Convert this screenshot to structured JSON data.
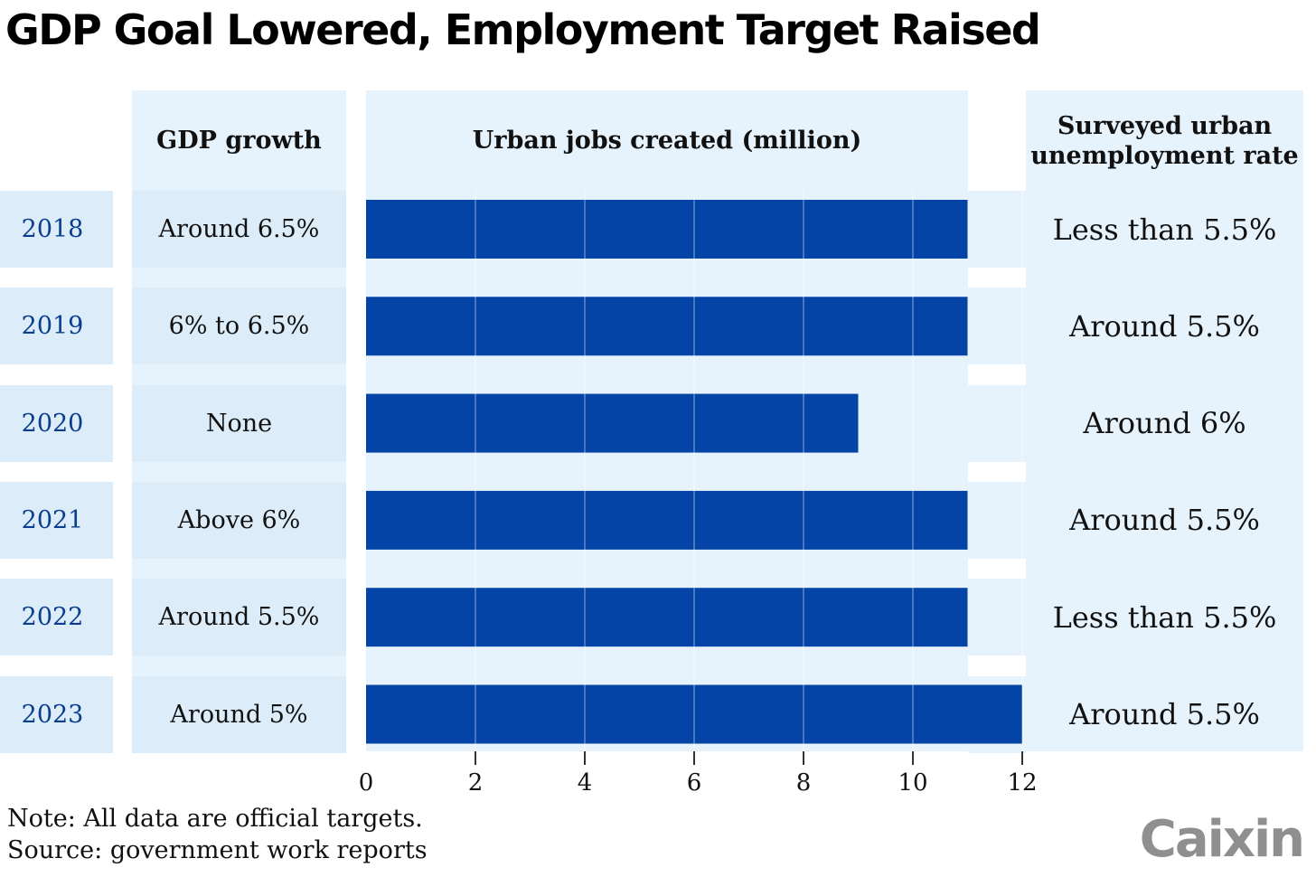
{
  "title": "GDP Goal Lowered, Employment Target Raised",
  "headers": {
    "gdp": "GDP growth",
    "jobs": "Urban jobs created (million)",
    "unemp_line1": "Surveyed urban",
    "unemp_line2": "unemployment rate"
  },
  "rows": [
    {
      "year": "2018",
      "gdp": "Around 6.5%",
      "unemp": "Less than 5.5%"
    },
    {
      "year": "2019",
      "gdp": "6% to 6.5%",
      "unemp": "Around 5.5%"
    },
    {
      "year": "2020",
      "gdp": "None",
      "unemp": "Around 6%"
    },
    {
      "year": "2021",
      "gdp": "Above 6%",
      "unemp": "Around 5.5%"
    },
    {
      "year": "2022",
      "gdp": "Around 5.5%",
      "unemp": "Less than 5.5%"
    },
    {
      "year": "2023",
      "gdp": "Around 5%",
      "unemp": "Around 5.5%"
    }
  ],
  "note": "Note: All data are official targets.",
  "source": "Source: government work reports",
  "logo": "Caixin",
  "colors": {
    "bar": "#0444a6",
    "panel": "#e6f3fc",
    "panel_alt": "#d6ebf8",
    "year_text": "#0c3e8f",
    "logo": "#8f8f8f"
  },
  "chart_data": {
    "type": "bar",
    "orientation": "horizontal",
    "categories": [
      "2018",
      "2019",
      "2020",
      "2021",
      "2022",
      "2023"
    ],
    "values": [
      11,
      11,
      9,
      11,
      11,
      12
    ],
    "xlabel": "Urban jobs created (million)",
    "xlim": [
      0,
      12
    ],
    "xticks": [
      "0",
      "2",
      "4",
      "6",
      "8",
      "10",
      "12"
    ],
    "grid": true
  }
}
